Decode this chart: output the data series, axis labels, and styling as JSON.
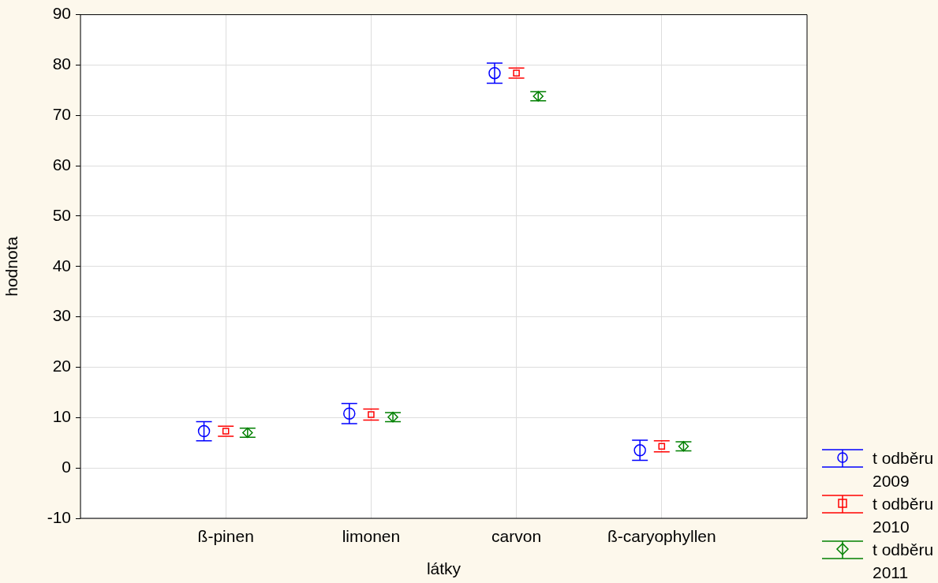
{
  "chart_data": {
    "type": "scatter",
    "xlabel": "látky",
    "ylabel": "hodnota",
    "categories": [
      "ß-pinen",
      "limonen",
      "carvon",
      "ß-caryophyllen"
    ],
    "ylim": [
      -10,
      90
    ],
    "yticks": [
      -10,
      0,
      10,
      20,
      30,
      40,
      50,
      60,
      70,
      80,
      90
    ],
    "grid": true,
    "legend": "bottom right",
    "series": [
      {
        "name": "t odběru 2009",
        "color": "#0000ff",
        "marker": "circle",
        "values": [
          7.3,
          10.8,
          78.4,
          3.5
        ],
        "errors": [
          1.9,
          2,
          2,
          2
        ]
      },
      {
        "name": "t odběru 2010",
        "color": "#ff0000",
        "marker": "square",
        "values": [
          7.3,
          10.6,
          78.4,
          4.3
        ],
        "errors": [
          1,
          1.1,
          1,
          1.1
        ]
      },
      {
        "name": "t odběru 2011",
        "color": "#008000",
        "marker": "diamond",
        "values": [
          7.0,
          10.1,
          73.8,
          4.3
        ],
        "errors": [
          0.9,
          0.9,
          0.9,
          0.9
        ]
      }
    ]
  }
}
